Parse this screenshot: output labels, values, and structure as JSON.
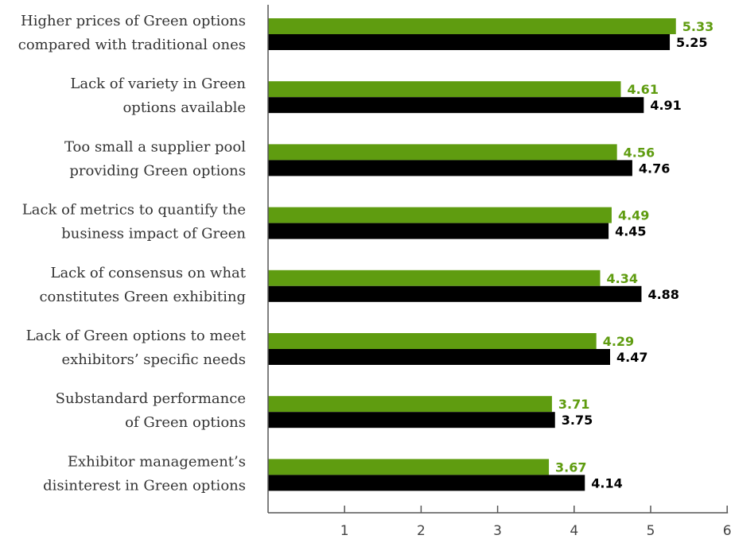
{
  "chart_data": {
    "type": "bar",
    "orientation": "horizontal",
    "categories": [
      [
        "Higher prices of Green options",
        "compared with traditional ones"
      ],
      [
        "Lack of variety in Green",
        "options available"
      ],
      [
        "Too small a supplier pool",
        "providing Green options"
      ],
      [
        "Lack of metrics to quantify the",
        "business impact of Green"
      ],
      [
        "Lack of consensus on what",
        "constitutes Green exhibiting"
      ],
      [
        "Lack of Green options to meet",
        "exhibitors’ specific needs"
      ],
      [
        "Substandard performance",
        "of Green options"
      ],
      [
        "Exhibitor management’s",
        "disinterest in Green options"
      ]
    ],
    "series": [
      {
        "color": "#5f9c10",
        "values": [
          5.33,
          4.61,
          4.56,
          4.49,
          4.34,
          4.29,
          3.71,
          3.67
        ],
        "labels": [
          "5.33",
          "4.61",
          "4.56",
          "4.49",
          "4.34",
          "4.29",
          "3.71",
          "3.67"
        ]
      },
      {
        "color": "#000000",
        "values": [
          5.25,
          4.91,
          4.76,
          4.45,
          4.88,
          4.47,
          3.75,
          4.14
        ],
        "labels": [
          "5.25",
          "4.91",
          "4.76",
          "4.45",
          "4.88",
          "4.47",
          "3.75",
          "4.14"
        ]
      }
    ],
    "xlim": [
      0,
      6
    ],
    "xticks": [
      "1",
      "2",
      "3",
      "4",
      "5",
      "6"
    ],
    "title": "",
    "xlabel": "",
    "ylabel": "",
    "grid": false,
    "legend": "none"
  }
}
